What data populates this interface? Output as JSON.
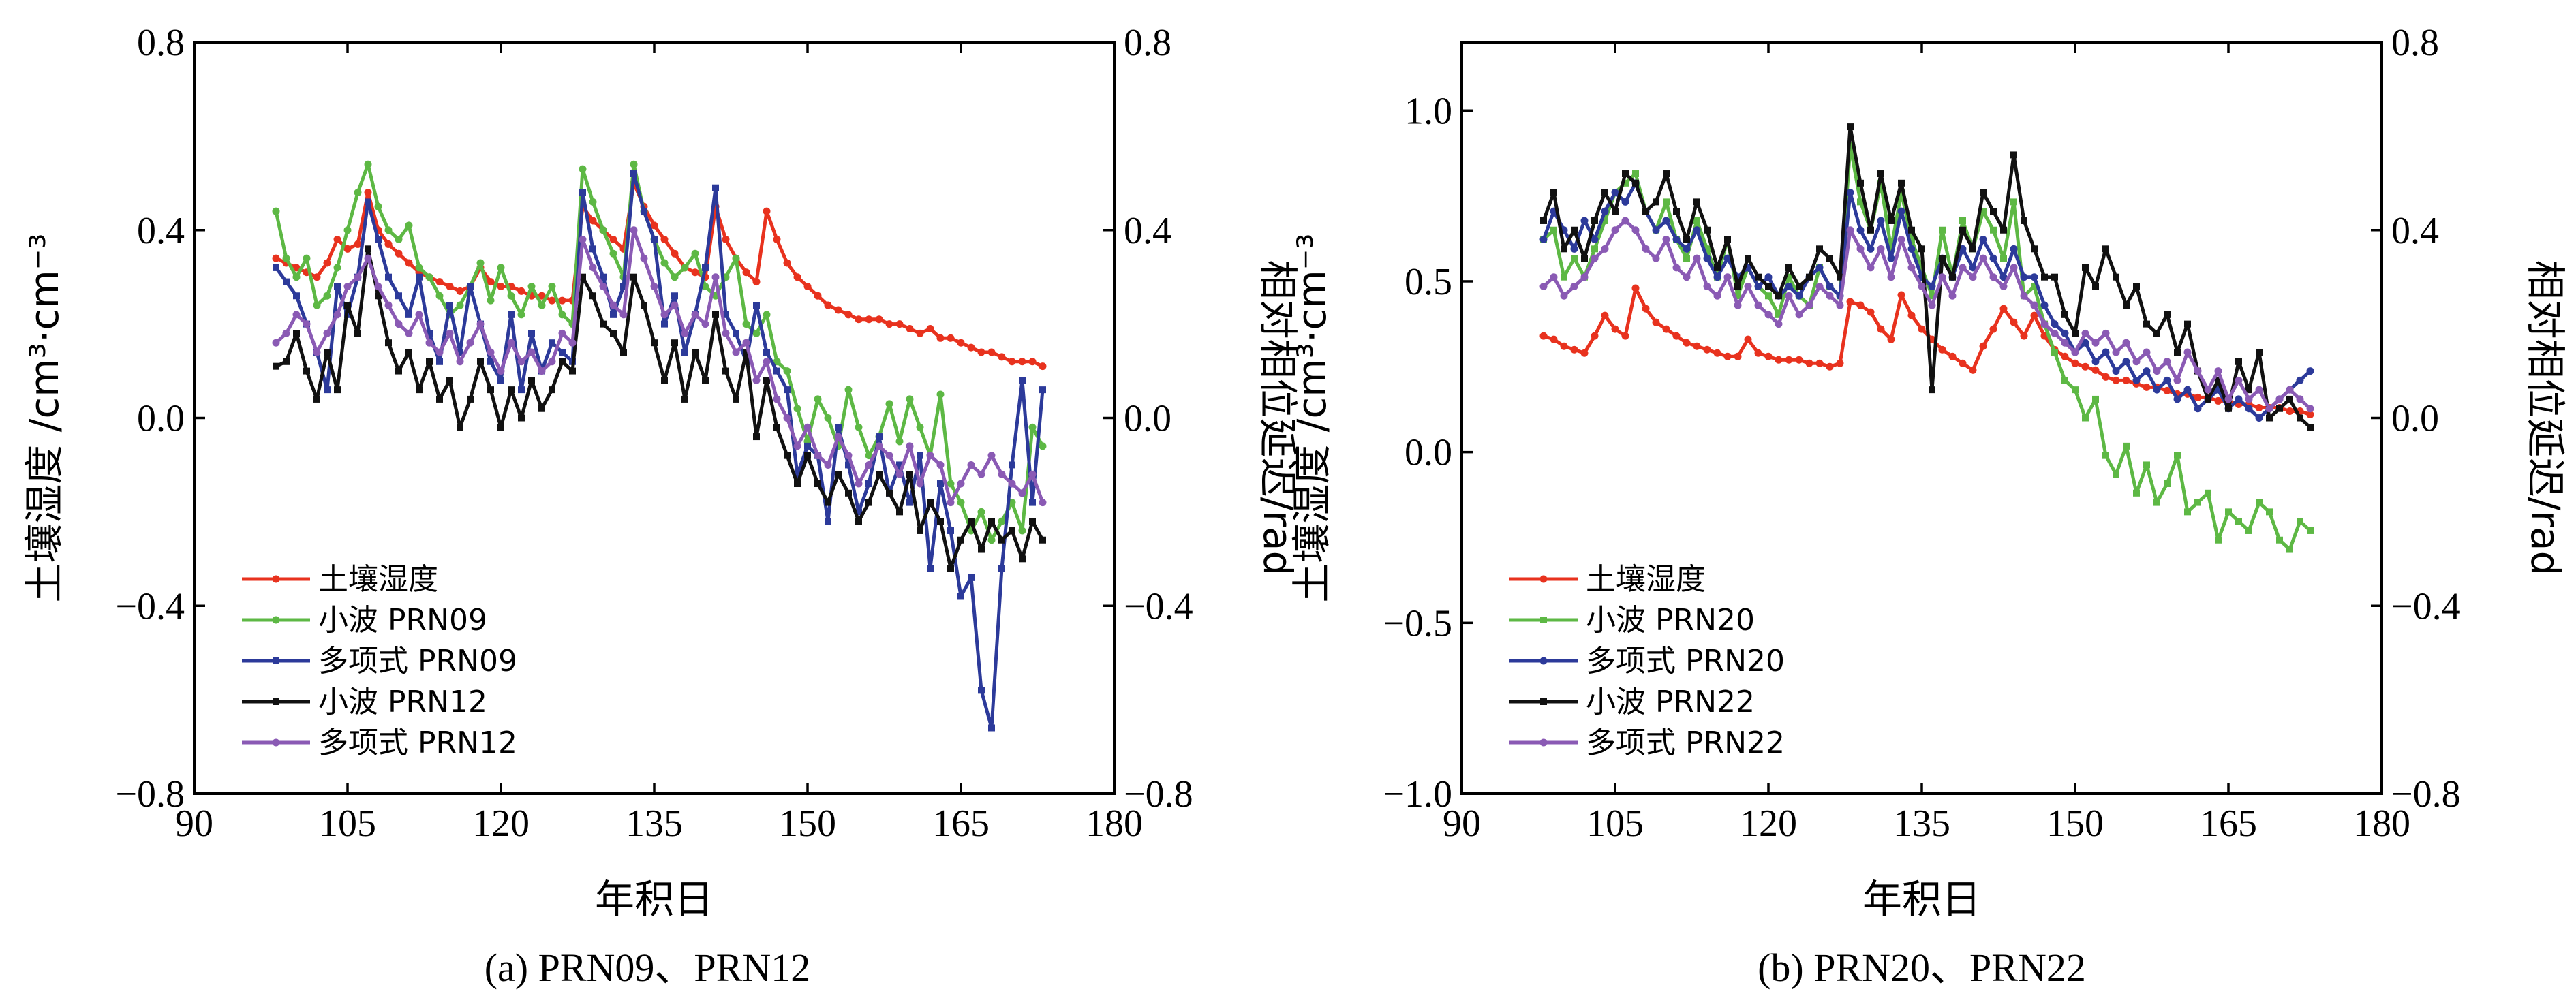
{
  "captions": [
    "(a) PRN09、PRN12",
    "(b) PRN20、PRN22"
  ],
  "chart_data": [
    {
      "type": "line",
      "caption": "(a) PRN09、PRN12",
      "xlabel": "年积日",
      "ylabel_left": "土壤湿度 /cm³·cm⁻³",
      "ylabel_right": "相对相位延迟/rad",
      "xlim": [
        90,
        180
      ],
      "ylim_left": [
        -0.8,
        0.8
      ],
      "ylim_right": [
        -0.8,
        0.8
      ],
      "x_ticks": [
        "90",
        "105",
        "120",
        "135",
        "150",
        "165",
        "180"
      ],
      "y_ticks_left": [
        "−0.8",
        "−0.4",
        "0.0",
        "0.4",
        "0.8"
      ],
      "y_ticks_right": [
        "−0.8",
        "−0.4",
        "0.0",
        "0.4",
        "0.8"
      ],
      "legend_position": "bottom-left",
      "x": [
        98,
        99,
        100,
        101,
        102,
        103,
        104,
        105,
        106,
        107,
        108,
        109,
        110,
        111,
        112,
        113,
        114,
        115,
        116,
        117,
        118,
        119,
        120,
        121,
        122,
        123,
        124,
        125,
        126,
        127,
        128,
        129,
        130,
        131,
        132,
        133,
        134,
        135,
        136,
        137,
        138,
        139,
        140,
        141,
        142,
        143,
        144,
        145,
        146,
        147,
        148,
        149,
        150,
        151,
        152,
        153,
        154,
        155,
        156,
        157,
        158,
        159,
        160,
        161,
        162,
        163,
        164,
        165,
        166,
        167,
        168,
        169,
        170,
        171,
        172,
        173
      ],
      "series": [
        {
          "name": "土壤湿度",
          "color": "#e8321e",
          "marker": "circle",
          "values": [
            0.34,
            0.33,
            0.32,
            0.31,
            0.3,
            0.33,
            0.38,
            0.36,
            0.37,
            0.48,
            0.4,
            0.37,
            0.35,
            0.33,
            0.31,
            0.3,
            0.29,
            0.28,
            0.27,
            0.28,
            0.32,
            0.29,
            0.28,
            0.28,
            0.27,
            0.26,
            0.26,
            0.25,
            0.25,
            0.25,
            0.45,
            0.42,
            0.4,
            0.38,
            0.36,
            0.5,
            0.45,
            0.41,
            0.38,
            0.35,
            0.32,
            0.31,
            0.3,
            0.45,
            0.38,
            0.34,
            0.31,
            0.29,
            0.44,
            0.38,
            0.33,
            0.3,
            0.28,
            0.26,
            0.24,
            0.23,
            0.22,
            0.21,
            0.21,
            0.21,
            0.2,
            0.2,
            0.19,
            0.18,
            0.19,
            0.17,
            0.17,
            0.16,
            0.15,
            0.14,
            0.14,
            0.13,
            0.12,
            0.12,
            0.12,
            0.11
          ]
        },
        {
          "name": "小波 PRN09",
          "color": "#5db844",
          "marker": "circle",
          "values": [
            0.44,
            0.34,
            0.3,
            0.34,
            0.24,
            0.26,
            0.32,
            0.4,
            0.48,
            0.54,
            0.45,
            0.4,
            0.38,
            0.41,
            0.32,
            0.3,
            0.26,
            0.22,
            0.24,
            0.28,
            0.33,
            0.25,
            0.32,
            0.26,
            0.22,
            0.28,
            0.24,
            0.28,
            0.22,
            0.2,
            0.53,
            0.46,
            0.4,
            0.35,
            0.3,
            0.54,
            0.44,
            0.38,
            0.33,
            0.3,
            0.32,
            0.35,
            0.28,
            0.26,
            0.3,
            0.34,
            0.2,
            0.18,
            0.22,
            0.12,
            0.1,
            0.02,
            -0.05,
            0.04,
            0.0,
            -0.06,
            0.06,
            -0.02,
            -0.08,
            -0.04,
            0.03,
            -0.05,
            0.04,
            -0.02,
            -0.08,
            0.05,
            -0.14,
            -0.18,
            -0.24,
            -0.2,
            -0.26,
            -0.22,
            -0.18,
            -0.24,
            -0.02,
            -0.06
          ]
        },
        {
          "name": "多项式 PRN09",
          "color": "#2c3a9a",
          "marker": "square",
          "values": [
            0.32,
            0.29,
            0.26,
            0.2,
            0.14,
            0.06,
            0.28,
            0.22,
            0.3,
            0.46,
            0.38,
            0.3,
            0.26,
            0.22,
            0.3,
            0.18,
            0.12,
            0.24,
            0.14,
            0.28,
            0.2,
            0.12,
            0.08,
            0.22,
            0.06,
            0.18,
            0.1,
            0.16,
            0.14,
            0.12,
            0.48,
            0.36,
            0.3,
            0.22,
            0.28,
            0.52,
            0.44,
            0.38,
            0.2,
            0.26,
            0.14,
            0.22,
            0.32,
            0.49,
            0.22,
            0.18,
            0.12,
            0.24,
            0.14,
            0.1,
            0.06,
            -0.12,
            -0.06,
            -0.08,
            -0.22,
            -0.02,
            -0.1,
            -0.2,
            -0.14,
            -0.04,
            -0.16,
            -0.1,
            -0.18,
            -0.08,
            -0.32,
            -0.14,
            -0.24,
            -0.38,
            -0.34,
            -0.58,
            -0.66,
            -0.32,
            -0.1,
            0.08,
            -0.18,
            0.06
          ]
        },
        {
          "name": "小波 PRN12",
          "color": "#111111",
          "marker": "square",
          "values": [
            0.11,
            0.12,
            0.18,
            0.1,
            0.04,
            0.14,
            0.06,
            0.24,
            0.18,
            0.36,
            0.26,
            0.16,
            0.1,
            0.14,
            0.06,
            0.12,
            0.04,
            0.08,
            -0.02,
            0.04,
            0.12,
            0.06,
            -0.02,
            0.06,
            0.0,
            0.08,
            0.02,
            0.06,
            0.12,
            0.1,
            0.3,
            0.26,
            0.2,
            0.18,
            0.14,
            0.3,
            0.24,
            0.16,
            0.08,
            0.16,
            0.04,
            0.14,
            0.08,
            0.22,
            0.1,
            0.04,
            0.14,
            -0.04,
            0.08,
            -0.02,
            -0.08,
            -0.14,
            -0.08,
            -0.14,
            -0.18,
            -0.12,
            -0.16,
            -0.22,
            -0.18,
            -0.12,
            -0.16,
            -0.2,
            -0.12,
            -0.24,
            -0.18,
            -0.22,
            -0.32,
            -0.26,
            -0.22,
            -0.28,
            -0.22,
            -0.26,
            -0.24,
            -0.3,
            -0.22,
            -0.26
          ]
        },
        {
          "name": "多项式 PRN12",
          "color": "#8a5ab4",
          "marker": "circle",
          "values": [
            0.16,
            0.18,
            0.22,
            0.2,
            0.14,
            0.18,
            0.22,
            0.28,
            0.3,
            0.34,
            0.28,
            0.24,
            0.2,
            0.18,
            0.22,
            0.16,
            0.14,
            0.18,
            0.12,
            0.16,
            0.2,
            0.14,
            0.1,
            0.16,
            0.12,
            0.14,
            0.1,
            0.12,
            0.18,
            0.16,
            0.38,
            0.32,
            0.28,
            0.24,
            0.22,
            0.4,
            0.34,
            0.28,
            0.22,
            0.24,
            0.18,
            0.22,
            0.2,
            0.3,
            0.18,
            0.14,
            0.16,
            0.08,
            0.12,
            0.04,
            0.0,
            -0.06,
            -0.02,
            -0.08,
            -0.1,
            -0.04,
            -0.08,
            -0.14,
            -0.1,
            -0.06,
            -0.08,
            -0.12,
            -0.06,
            -0.14,
            -0.08,
            -0.1,
            -0.18,
            -0.14,
            -0.1,
            -0.12,
            -0.08,
            -0.12,
            -0.14,
            -0.16,
            -0.12,
            -0.18
          ]
        }
      ]
    },
    {
      "type": "line",
      "caption": "(b) PRN20、PRN22",
      "xlabel": "年积日",
      "ylabel_left": "土壤湿度 /cm³·cm⁻³",
      "ylabel_right": "相对相位延迟/rad",
      "xlim": [
        90,
        180
      ],
      "ylim_left": [
        -1.0,
        1.2
      ],
      "ylim_right": [
        -0.8,
        0.8
      ],
      "x_ticks": [
        "90",
        "105",
        "120",
        "135",
        "150",
        "165",
        "180"
      ],
      "y_ticks_left": [
        "−1.0",
        "−0.5",
        "0.0",
        "0.5",
        "1.0"
      ],
      "y_ticks_right": [
        "−0.8",
        "−0.4",
        "0.0",
        "0.4",
        "0.8"
      ],
      "legend_position": "bottom-left",
      "x": [
        98,
        99,
        100,
        101,
        102,
        103,
        104,
        105,
        106,
        107,
        108,
        109,
        110,
        111,
        112,
        113,
        114,
        115,
        116,
        117,
        118,
        119,
        120,
        121,
        122,
        123,
        124,
        125,
        126,
        127,
        128,
        129,
        130,
        131,
        132,
        133,
        134,
        135,
        136,
        137,
        138,
        139,
        140,
        141,
        142,
        143,
        144,
        145,
        146,
        147,
        148,
        149,
        150,
        151,
        152,
        153,
        154,
        155,
        156,
        157,
        158,
        159,
        160,
        161,
        162,
        163,
        164,
        165,
        166,
        167,
        168,
        169,
        170,
        171,
        172,
        173
      ],
      "series": [
        {
          "name": "土壤湿度",
          "color": "#e8321e",
          "marker": "circle",
          "values": [
            0.34,
            0.33,
            0.31,
            0.3,
            0.29,
            0.34,
            0.4,
            0.36,
            0.34,
            0.48,
            0.42,
            0.38,
            0.36,
            0.34,
            0.32,
            0.31,
            0.3,
            0.29,
            0.28,
            0.28,
            0.33,
            0.29,
            0.28,
            0.27,
            0.27,
            0.27,
            0.26,
            0.26,
            0.25,
            0.26,
            0.44,
            0.43,
            0.41,
            0.36,
            0.33,
            0.46,
            0.4,
            0.36,
            0.33,
            0.3,
            0.28,
            0.26,
            0.24,
            0.31,
            0.36,
            0.42,
            0.38,
            0.34,
            0.4,
            0.34,
            0.3,
            0.28,
            0.26,
            0.25,
            0.24,
            0.22,
            0.21,
            0.21,
            0.2,
            0.19,
            0.19,
            0.18,
            0.17,
            0.17,
            0.16,
            0.16,
            0.15,
            0.15,
            0.14,
            0.14,
            0.13,
            0.13,
            0.13,
            0.12,
            0.12,
            0.11
          ]
        },
        {
          "name": "小波 PRN20",
          "color": "#5db844",
          "marker": "square",
          "values": [
            0.38,
            0.4,
            0.3,
            0.34,
            0.3,
            0.36,
            0.42,
            0.48,
            0.5,
            0.52,
            0.44,
            0.4,
            0.46,
            0.38,
            0.34,
            0.42,
            0.36,
            0.3,
            0.38,
            0.26,
            0.32,
            0.28,
            0.26,
            0.22,
            0.3,
            0.26,
            0.24,
            0.32,
            0.28,
            0.26,
            0.58,
            0.46,
            0.4,
            0.5,
            0.36,
            0.48,
            0.38,
            0.32,
            0.26,
            0.4,
            0.3,
            0.42,
            0.36,
            0.44,
            0.4,
            0.34,
            0.46,
            0.26,
            0.28,
            0.2,
            0.14,
            0.08,
            0.06,
            0.0,
            0.04,
            -0.08,
            -0.12,
            -0.06,
            -0.16,
            -0.1,
            -0.18,
            -0.14,
            -0.08,
            -0.2,
            -0.18,
            -0.16,
            -0.26,
            -0.2,
            -0.22,
            -0.24,
            -0.18,
            -0.2,
            -0.26,
            -0.28,
            -0.22,
            -0.24
          ]
        },
        {
          "name": "多项式 PRN20",
          "color": "#2c3a9a",
          "marker": "circle",
          "values": [
            0.38,
            0.44,
            0.4,
            0.36,
            0.42,
            0.38,
            0.44,
            0.48,
            0.46,
            0.5,
            0.44,
            0.4,
            0.42,
            0.38,
            0.36,
            0.4,
            0.34,
            0.3,
            0.34,
            0.3,
            0.32,
            0.28,
            0.3,
            0.26,
            0.28,
            0.26,
            0.3,
            0.32,
            0.28,
            0.26,
            0.48,
            0.4,
            0.36,
            0.42,
            0.34,
            0.44,
            0.36,
            0.3,
            0.28,
            0.34,
            0.3,
            0.36,
            0.32,
            0.38,
            0.34,
            0.3,
            0.36,
            0.3,
            0.3,
            0.24,
            0.2,
            0.18,
            0.14,
            0.16,
            0.12,
            0.14,
            0.1,
            0.12,
            0.08,
            0.1,
            0.06,
            0.08,
            0.04,
            0.06,
            0.02,
            0.04,
            0.06,
            0.02,
            0.04,
            0.02,
            0.0,
            0.02,
            0.04,
            0.06,
            0.08,
            0.1
          ]
        },
        {
          "name": "小波 PRN22",
          "color": "#111111",
          "marker": "square",
          "values": [
            0.42,
            0.48,
            0.36,
            0.4,
            0.34,
            0.42,
            0.48,
            0.44,
            0.52,
            0.5,
            0.44,
            0.46,
            0.52,
            0.44,
            0.38,
            0.46,
            0.4,
            0.32,
            0.38,
            0.28,
            0.34,
            0.3,
            0.28,
            0.26,
            0.32,
            0.28,
            0.3,
            0.36,
            0.34,
            0.3,
            0.62,
            0.5,
            0.4,
            0.52,
            0.42,
            0.5,
            0.4,
            0.36,
            0.06,
            0.34,
            0.3,
            0.4,
            0.36,
            0.48,
            0.44,
            0.4,
            0.56,
            0.42,
            0.36,
            0.3,
            0.3,
            0.22,
            0.18,
            0.32,
            0.28,
            0.36,
            0.3,
            0.24,
            0.28,
            0.2,
            0.18,
            0.22,
            0.14,
            0.2,
            0.1,
            0.04,
            0.08,
            0.02,
            0.12,
            0.06,
            0.14,
            0.0,
            0.02,
            0.04,
            0.0,
            -0.02
          ]
        },
        {
          "name": "多项式 PRN22",
          "color": "#8a5ab4",
          "marker": "circle",
          "values": [
            0.28,
            0.3,
            0.26,
            0.28,
            0.3,
            0.34,
            0.36,
            0.4,
            0.42,
            0.4,
            0.36,
            0.34,
            0.38,
            0.32,
            0.3,
            0.34,
            0.28,
            0.26,
            0.3,
            0.24,
            0.28,
            0.24,
            0.22,
            0.2,
            0.26,
            0.22,
            0.24,
            0.28,
            0.26,
            0.24,
            0.4,
            0.36,
            0.32,
            0.36,
            0.3,
            0.38,
            0.32,
            0.28,
            0.24,
            0.3,
            0.26,
            0.32,
            0.3,
            0.34,
            0.3,
            0.28,
            0.32,
            0.26,
            0.24,
            0.2,
            0.18,
            0.16,
            0.14,
            0.18,
            0.16,
            0.18,
            0.14,
            0.16,
            0.12,
            0.14,
            0.1,
            0.12,
            0.08,
            0.14,
            0.1,
            0.06,
            0.1,
            0.04,
            0.08,
            0.04,
            0.06,
            0.02,
            0.04,
            0.06,
            0.04,
            0.02
          ]
        }
      ]
    }
  ]
}
